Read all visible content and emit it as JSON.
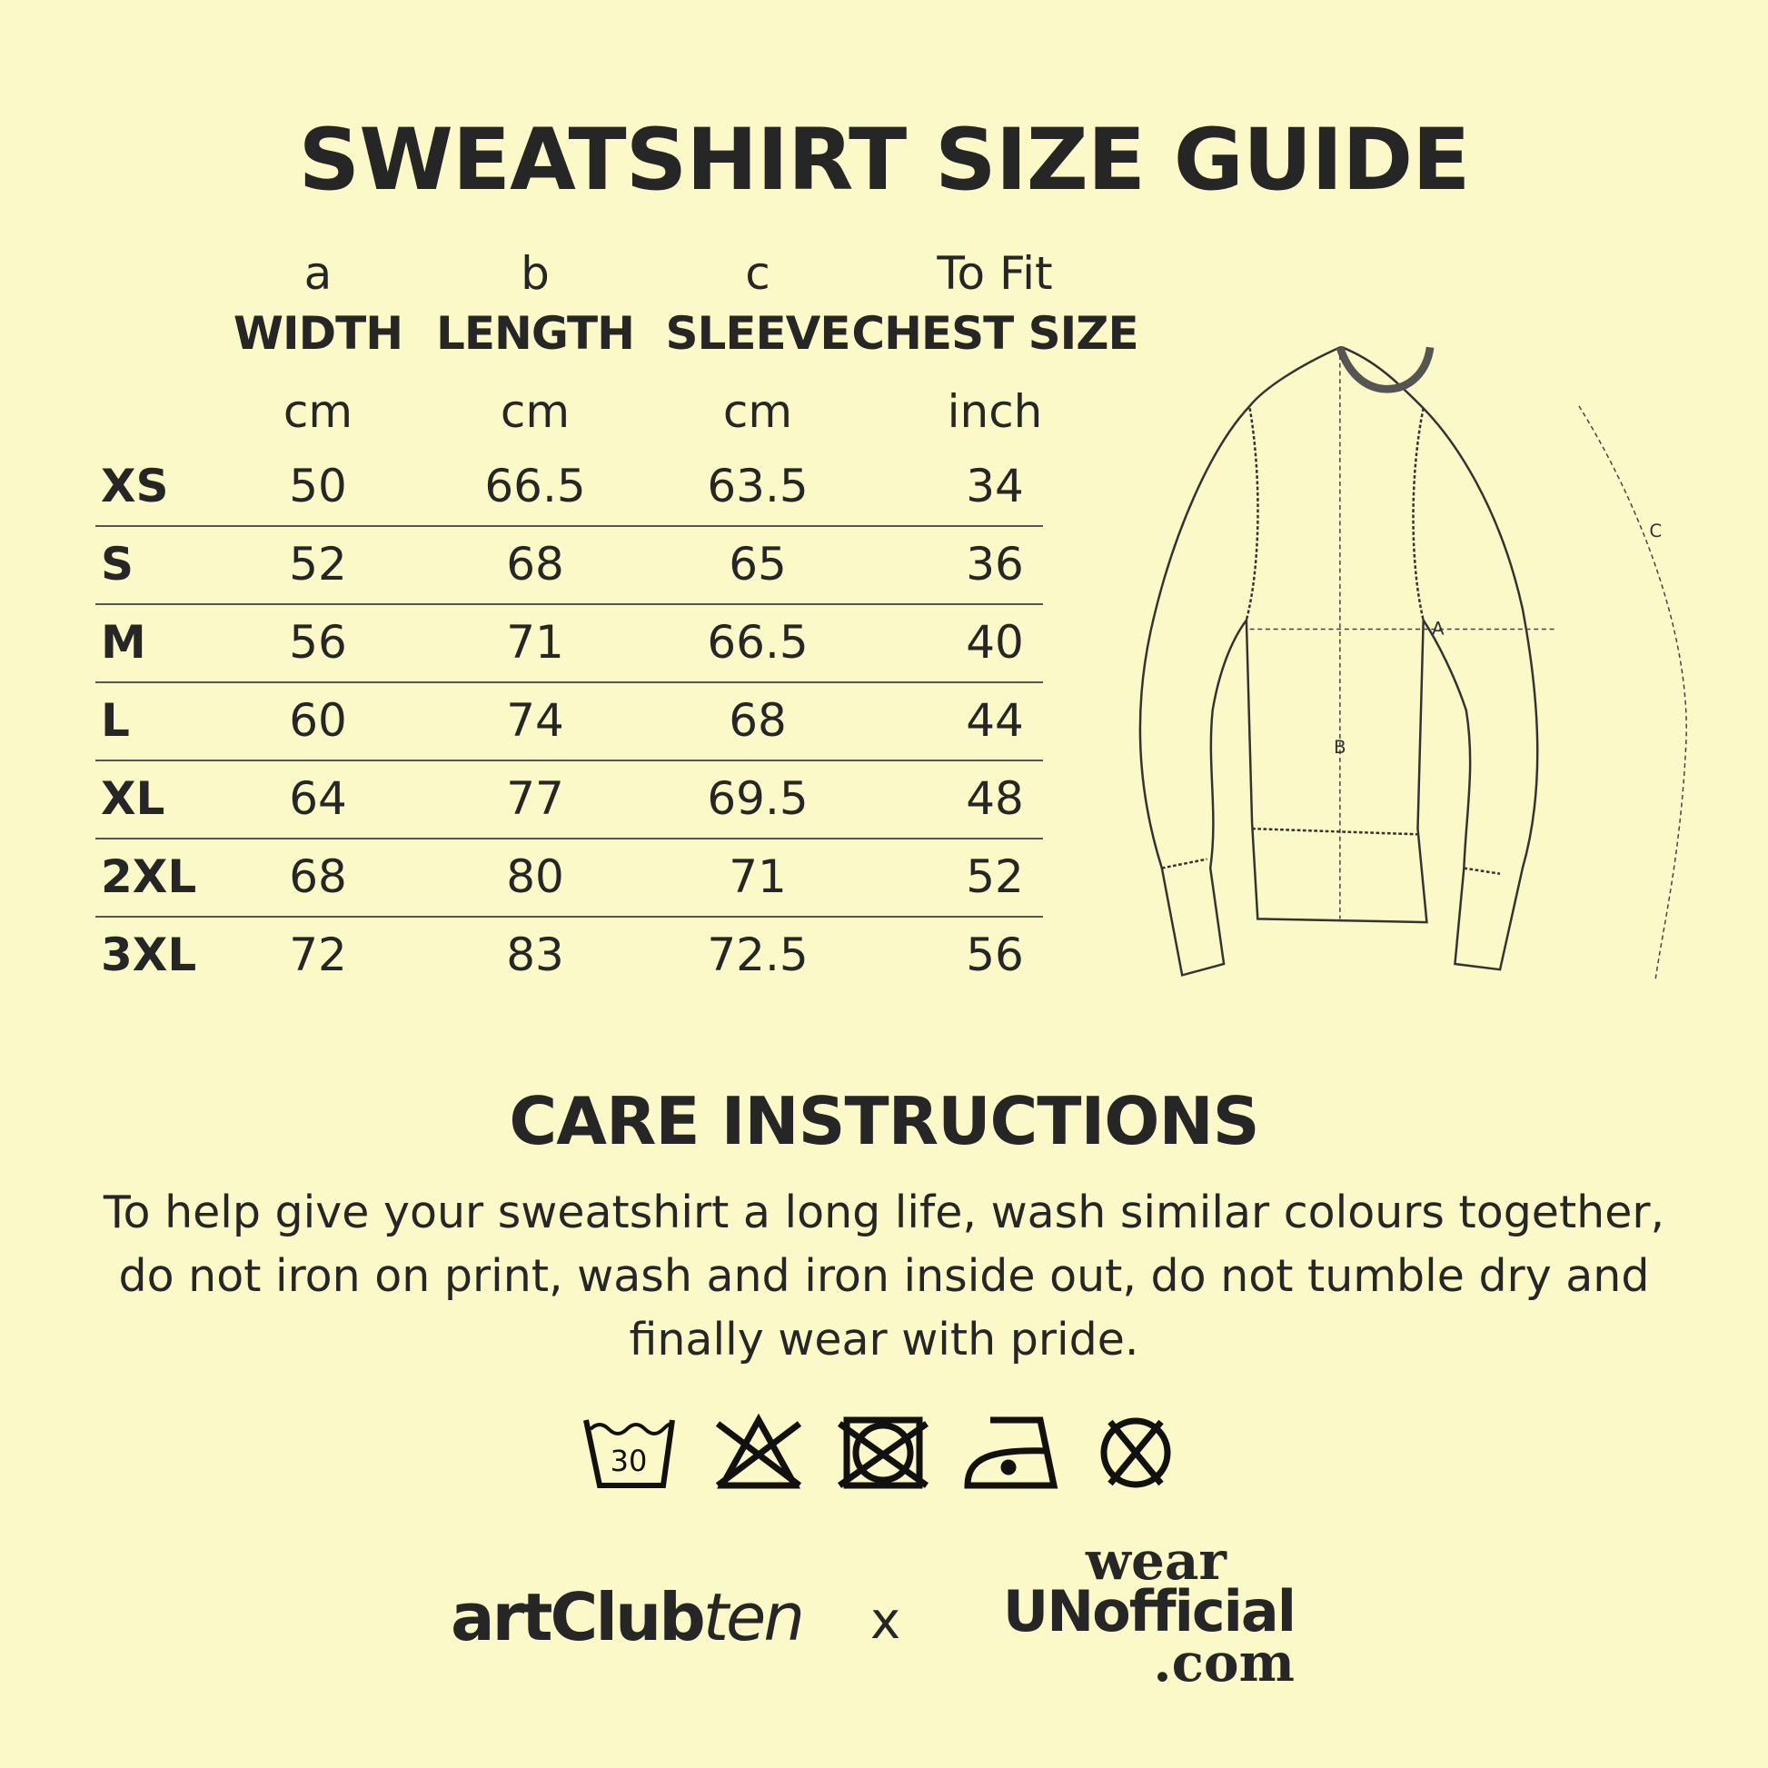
{
  "title": "SWEATSHIRT SIZE GUIDE",
  "table": {
    "columns": [
      {
        "letter": "a",
        "label": "WIDTH",
        "unit": "cm"
      },
      {
        "letter": "b",
        "label": "LENGTH",
        "unit": "cm"
      },
      {
        "letter": "c",
        "label": "SLEEVE",
        "unit": "cm"
      },
      {
        "letter": "To Fit",
        "label": "CHEST SIZE",
        "unit": "inch"
      }
    ],
    "rows": [
      {
        "size": "XS",
        "values": [
          "50",
          "66.5",
          "63.5",
          "34"
        ]
      },
      {
        "size": "S",
        "values": [
          "52",
          "68",
          "65",
          "36"
        ]
      },
      {
        "size": "M",
        "values": [
          "56",
          "71",
          "66.5",
          "40"
        ]
      },
      {
        "size": "L",
        "values": [
          "60",
          "74",
          "68",
          "44"
        ]
      },
      {
        "size": "XL",
        "values": [
          "64",
          "77",
          "69.5",
          "48"
        ]
      },
      {
        "size": "2XL",
        "values": [
          "68",
          "80",
          "71",
          "52"
        ]
      },
      {
        "size": "3XL",
        "values": [
          "72",
          "83",
          "72.5",
          "56"
        ]
      }
    ]
  },
  "diagram": {
    "labels": {
      "a": "A",
      "b": "B",
      "c": "C"
    }
  },
  "care": {
    "title": "CARE INSTRUCTIONS",
    "text": "To help give your sweatshirt a long life, wash similar colours together, do not iron on print, wash and iron inside out, do not tumble dry and finally wear with pride.",
    "icons": [
      "wash-30-icon",
      "do-not-bleach-icon",
      "do-not-tumble-dry-icon",
      "iron-low-icon",
      "do-not-dry-clean-icon"
    ],
    "wash_temp": "30"
  },
  "footer": {
    "brand1_bold": "artClub",
    "brand1_italic": "ten",
    "separator": "x",
    "brand2_line1": "wear",
    "brand2_line2": "UNofficial",
    "brand2_line3": ".com"
  },
  "colors": {
    "background": "#fbf9c8",
    "text": "#262626"
  }
}
